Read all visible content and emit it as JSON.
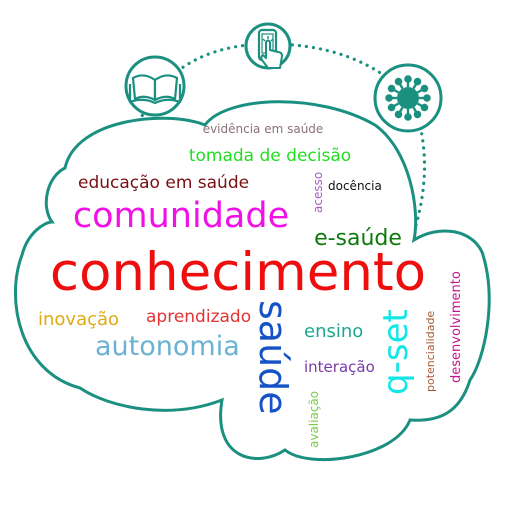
{
  "words": [
    {
      "key": "evidencia",
      "text": "evidência em saúde",
      "color": "#8a7278"
    },
    {
      "key": "tomada",
      "text": "tomada de decisão",
      "color": "#22dd22"
    },
    {
      "key": "educacao",
      "text": "educação em saúde",
      "color": "#7a0e12"
    },
    {
      "key": "acesso",
      "text": "acesso",
      "color": "#a65fc4"
    },
    {
      "key": "docencia",
      "text": "docência",
      "color": "#111111"
    },
    {
      "key": "comunidade",
      "text": "comunidade",
      "color": "#f011e6"
    },
    {
      "key": "esaude",
      "text": "e-saúde",
      "color": "#0e7a0e"
    },
    {
      "key": "conhecimento",
      "text": "conhecimento",
      "color": "#ee0e0e"
    },
    {
      "key": "desenvolvimento",
      "text": "desenvolvimento",
      "color": "#c2188a"
    },
    {
      "key": "inovacao",
      "text": "inovação",
      "color": "#e0aa12"
    },
    {
      "key": "aprendizado",
      "text": "aprendizado",
      "color": "#e33232"
    },
    {
      "key": "saude",
      "text": "saúde",
      "color": "#1452c6"
    },
    {
      "key": "qset",
      "text": "q-set",
      "color": "#12e6e6"
    },
    {
      "key": "potencialidade",
      "text": "potencialidade",
      "color": "#a65a32"
    },
    {
      "key": "ensino",
      "text": "ensino",
      "color": "#1aa890"
    },
    {
      "key": "autonomia",
      "text": "autonomia",
      "color": "#6ab3d2"
    },
    {
      "key": "interacao",
      "text": "interação",
      "color": "#7a3aaa"
    },
    {
      "key": "avaliacao",
      "text": "avaliação",
      "color": "#7acc46"
    }
  ],
  "colors": {
    "outline": "#1b9080",
    "icon_fill": "#ffffff"
  },
  "icons": [
    "book-icon",
    "smartphone-touch-icon",
    "virus-icon"
  ]
}
